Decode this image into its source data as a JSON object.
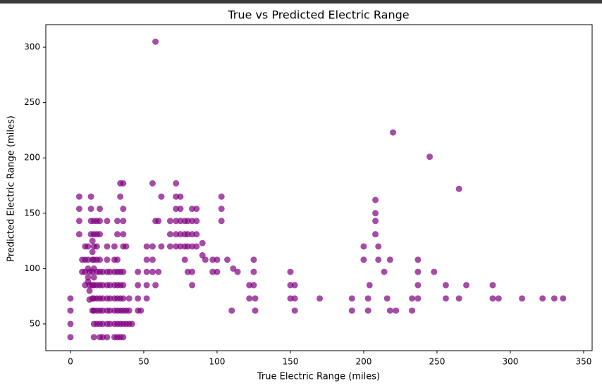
{
  "chart_data": {
    "type": "scatter",
    "title": "True vs Predicted Electric Range",
    "xlabel": "True Electric Range (miles)",
    "ylabel": "Predicted Electric Range (miles)",
    "color": "#800080",
    "xlim": [
      -16.8,
      355.8
    ],
    "ylim": [
      25.8,
      320.4
    ],
    "xticks": [
      0,
      50,
      100,
      150,
      200,
      250,
      300,
      350
    ],
    "yticks": [
      50,
      100,
      150,
      200,
      250,
      300
    ],
    "x": [
      0,
      0,
      0,
      0,
      6,
      6,
      6,
      6,
      8,
      8,
      10,
      10,
      10,
      10,
      12,
      12,
      12,
      12,
      12,
      13,
      13,
      13,
      13,
      14,
      14,
      14,
      14,
      15,
      15,
      15,
      15,
      15,
      15,
      15,
      16,
      16,
      16,
      16,
      16,
      16,
      16,
      16,
      16,
      16,
      16,
      18,
      18,
      18,
      18,
      18,
      18,
      18,
      18,
      18,
      20,
      20,
      20,
      20,
      20,
      20,
      20,
      20,
      20,
      20,
      22,
      22,
      22,
      22,
      22,
      22,
      25,
      25,
      25,
      25,
      25,
      25,
      25,
      25,
      25,
      27,
      27,
      27,
      27,
      27,
      30,
      30,
      30,
      30,
      30,
      30,
      30,
      30,
      32,
      32,
      32,
      32,
      32,
      32,
      32,
      32,
      32,
      34,
      34,
      34,
      34,
      34,
      34,
      34,
      34,
      36,
      36,
      36,
      36,
      36,
      36,
      36,
      36,
      36,
      36,
      36,
      38,
      38,
      38,
      40,
      40,
      40,
      42,
      46,
      46,
      46,
      46,
      48,
      52,
      52,
      52,
      52,
      52,
      56,
      56,
      56,
      56,
      58,
      58,
      58,
      60,
      60,
      62,
      62,
      68,
      68,
      68,
      72,
      72,
      72,
      72,
      72,
      72,
      75,
      75,
      75,
      75,
      75,
      78,
      78,
      78,
      78,
      80,
      80,
      80,
      80,
      83,
      83,
      83,
      83,
      83,
      83,
      86,
      86,
      86,
      86,
      90,
      90,
      92,
      97,
      97,
      100,
      100,
      103,
      103,
      103,
      107,
      110,
      111,
      114,
      122,
      122,
      125,
      125,
      125,
      126,
      126,
      150,
      150,
      150,
      153,
      153,
      153,
      170,
      192,
      192,
      200,
      200,
      203,
      203,
      204,
      208,
      208,
      208,
      208,
      210,
      210,
      214,
      216,
      218,
      218,
      220,
      222,
      233,
      233,
      237,
      237,
      237,
      237,
      245,
      248,
      256,
      256,
      265,
      265,
      270,
      288,
      288,
      292,
      308,
      322,
      330,
      336
    ],
    "values": [
      38,
      50,
      62,
      73,
      165,
      154,
      143,
      131,
      108,
      97,
      85,
      97,
      108,
      120,
      88,
      92,
      100,
      108,
      120,
      72,
      80,
      85,
      97,
      131,
      143,
      154,
      165,
      62,
      73,
      85,
      97,
      108,
      115,
      125,
      38,
      50,
      62,
      73,
      85,
      92,
      100,
      108,
      120,
      131,
      143,
      50,
      62,
      73,
      85,
      97,
      108,
      120,
      131,
      143,
      38,
      50,
      62,
      73,
      85,
      97,
      108,
      131,
      143,
      154,
      38,
      50,
      62,
      73,
      85,
      97,
      38,
      50,
      62,
      73,
      85,
      97,
      108,
      120,
      143,
      50,
      62,
      73,
      85,
      97,
      38,
      50,
      62,
      73,
      85,
      97,
      108,
      120,
      38,
      50,
      62,
      73,
      85,
      97,
      108,
      131,
      143,
      38,
      50,
      62,
      73,
      85,
      97,
      177,
      165,
      38,
      50,
      62,
      73,
      85,
      97,
      120,
      131,
      143,
      154,
      177,
      50,
      62,
      120,
      50,
      62,
      73,
      50,
      62,
      73,
      85,
      97,
      62,
      73,
      85,
      97,
      108,
      120,
      97,
      108,
      120,
      177,
      85,
      143,
      305,
      97,
      143,
      120,
      165,
      131,
      143,
      120,
      131,
      143,
      154,
      165,
      177,
      120,
      120,
      131,
      143,
      154,
      165,
      120,
      131,
      143,
      108,
      120,
      131,
      143,
      97,
      85,
      97,
      120,
      131,
      143,
      154,
      131,
      143,
      154,
      120,
      112,
      123,
      108,
      97,
      108,
      97,
      108,
      143,
      154,
      165,
      108,
      62,
      100,
      97,
      73,
      85,
      85,
      97,
      108,
      62,
      73,
      73,
      85,
      97,
      62,
      73,
      85,
      73,
      62,
      73,
      108,
      120,
      62,
      73,
      85,
      131,
      143,
      150,
      162,
      108,
      120,
      97,
      73,
      62,
      108,
      223,
      62,
      62,
      73,
      97,
      108,
      85,
      73,
      201,
      97,
      73,
      85,
      172,
      73,
      85,
      73,
      85,
      73,
      73,
      73,
      73,
      73
    ]
  }
}
